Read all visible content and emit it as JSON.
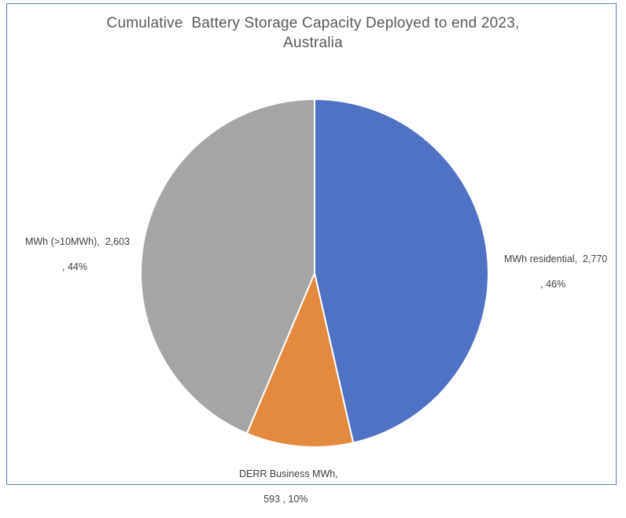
{
  "chart_data": {
    "type": "pie",
    "title_lines": [
      "Cumulative  Battery Storage Capacity Deployed to end 2023,",
      "Australia"
    ],
    "slices": [
      {
        "category": "MWh residential",
        "value": 2770,
        "value_label": "2,770",
        "percent_label": "46%",
        "color": "#4f72c4"
      },
      {
        "category": "DERR Business MWh",
        "value": 593,
        "value_label": "593",
        "percent_label": "10%",
        "color": "#e38a3e"
      },
      {
        "category": "MWh (>10MWh)",
        "value": 2603,
        "value_label": "2,603",
        "percent_label": "44%",
        "color": "#a5a5a5"
      }
    ],
    "data_labels": [
      {
        "line1": "MWh residential,  2,770",
        "line2": ", 46%"
      },
      {
        "line1": "DERR Business MWh,",
        "line2": "593 , 10%"
      },
      {
        "line1": "MWh (>10MWh),  2,603",
        "line2": ", 44%"
      }
    ],
    "start_angle": "12 o'clock",
    "direction": "clockwise",
    "legend": "none"
  }
}
